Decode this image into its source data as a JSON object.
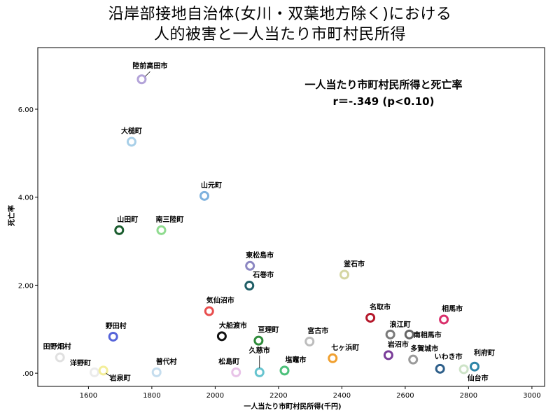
{
  "chart_data": {
    "type": "scatter",
    "title_lines": [
      "沿岸部接地自治体(女川・双葉地方除く)における",
      "人的被害と一人当たり市町村民所得"
    ],
    "xlabel": "一人当たり市町村民所得(千円)",
    "ylabel": "死亡率",
    "xlim": [
      1440,
      3040
    ],
    "ylim": [
      -0.3,
      7.4
    ],
    "x_ticks": [
      1600,
      1800,
      2000,
      2200,
      2400,
      2600,
      2800,
      3000
    ],
    "y_ticks": [
      {
        "value": 0,
        "label": ".00"
      },
      {
        "value": 2,
        "label": "2.00"
      },
      {
        "value": 4,
        "label": "4.00"
      },
      {
        "value": 6,
        "label": "6.00"
      }
    ],
    "grid": false,
    "annotation_lines": [
      "一人当たり市町村民所得と死亡率",
      "r＝-.349 (p<0.10)"
    ],
    "points": [
      {
        "name": "陸前高田市",
        "x": 1768,
        "y": 6.68,
        "color": "#b3a3d9"
      },
      {
        "name": "大槌町",
        "x": 1736,
        "y": 5.26,
        "color": "#a8cfe8"
      },
      {
        "name": "山元町",
        "x": 1966,
        "y": 4.03,
        "color": "#7fb2de"
      },
      {
        "name": "山田町",
        "x": 1697,
        "y": 3.25,
        "color": "#1a5c2e"
      },
      {
        "name": "南三陸町",
        "x": 1830,
        "y": 3.25,
        "color": "#8fdb8f"
      },
      {
        "name": "東松島市",
        "x": 2110,
        "y": 2.44,
        "color": "#8c87c2"
      },
      {
        "name": "石巻市",
        "x": 2108,
        "y": 1.99,
        "color": "#1f5e66"
      },
      {
        "name": "釜石市",
        "x": 2408,
        "y": 2.24,
        "color": "#d5d6a3"
      },
      {
        "name": "気仙沼市",
        "x": 1981,
        "y": 1.41,
        "color": "#e84e4e"
      },
      {
        "name": "名取市",
        "x": 2490,
        "y": 1.26,
        "color": "#b5182b"
      },
      {
        "name": "相馬市",
        "x": 2722,
        "y": 1.22,
        "color": "#d92f6b"
      },
      {
        "name": "浪江町",
        "x": 2553,
        "y": 0.88,
        "color": "#7a7a7a"
      },
      {
        "name": "南相馬市",
        "x": 2613,
        "y": 0.88,
        "color": "#666666"
      },
      {
        "name": "野田村",
        "x": 1678,
        "y": 0.83,
        "color": "#5664d9"
      },
      {
        "name": "大船渡市",
        "x": 2021,
        "y": 0.84,
        "color": "#111111"
      },
      {
        "name": "亘理町",
        "x": 2137,
        "y": 0.74,
        "color": "#2e8b3a"
      },
      {
        "name": "宮古市",
        "x": 2298,
        "y": 0.72,
        "color": "#bdbdbd"
      },
      {
        "name": "岩沼市",
        "x": 2547,
        "y": 0.41,
        "color": "#7a3d99"
      },
      {
        "name": "多賀城市",
        "x": 2625,
        "y": 0.31,
        "color": "#9a9a9a"
      },
      {
        "name": "七ヶ浜町",
        "x": 2371,
        "y": 0.34,
        "color": "#f0a030"
      },
      {
        "name": "田野畑村",
        "x": 1510,
        "y": 0.36,
        "color": "#e0e0e0"
      },
      {
        "name": "洋野町",
        "x": 1619,
        "y": 0.02,
        "color": "#ebebeb"
      },
      {
        "name": "岩泉町",
        "x": 1647,
        "y": 0.06,
        "color": "#f3ee9a"
      },
      {
        "name": "普代村",
        "x": 1815,
        "y": 0.02,
        "color": "#c5ddee"
      },
      {
        "name": "松島町",
        "x": 2066,
        "y": 0.02,
        "color": "#e8c3e8"
      },
      {
        "name": "久慈市",
        "x": 2140,
        "y": 0.02,
        "color": "#67c4cf"
      },
      {
        "name": "塩竈市",
        "x": 2219,
        "y": 0.06,
        "color": "#4cc07a"
      },
      {
        "name": "いわき市",
        "x": 2710,
        "y": 0.1,
        "color": "#2e5f8a"
      },
      {
        "name": "仙台市",
        "x": 2785,
        "y": 0.09,
        "color": "#cde3c7"
      },
      {
        "name": "利府町",
        "x": 2819,
        "y": 0.15,
        "color": "#2e86a8"
      }
    ]
  }
}
